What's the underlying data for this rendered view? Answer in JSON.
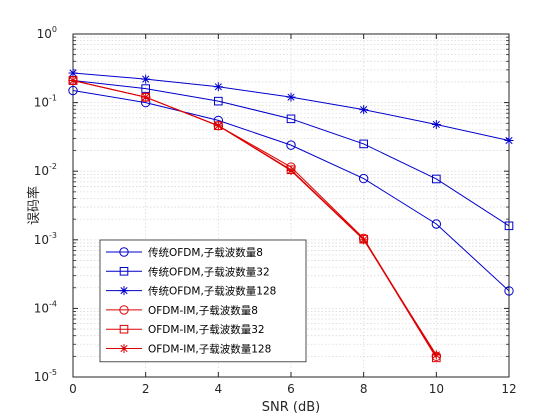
{
  "chart_data": {
    "type": "line",
    "xlabel": "SNR (dB)",
    "ylabel": "误码率",
    "x": [
      0,
      2,
      4,
      6,
      8,
      10,
      12
    ],
    "xlim": [
      0,
      12
    ],
    "ylim": [
      1e-05,
      1
    ],
    "yscale": "log",
    "grid": true,
    "minor_grid": true,
    "legend_position": "bottom-left",
    "xticks": [
      "0",
      "2",
      "4",
      "6",
      "8",
      "10",
      "12"
    ],
    "yticks": [
      {
        "base": "10",
        "exp": "-5"
      },
      {
        "base": "10",
        "exp": "-4"
      },
      {
        "base": "10",
        "exp": "-3"
      },
      {
        "base": "10",
        "exp": "-2"
      },
      {
        "base": "10",
        "exp": "-1"
      },
      {
        "base": "10",
        "exp": "0"
      }
    ],
    "series": [
      {
        "name": "传统OFDM,子载波数量8",
        "color": "#0000cc",
        "marker": "circle",
        "x": [
          0,
          2,
          4,
          6,
          8,
          10,
          12
        ],
        "values": [
          0.15,
          0.1,
          0.055,
          0.024,
          0.0078,
          0.0017,
          0.00018
        ]
      },
      {
        "name": "传统OFDM,子载波数量32",
        "color": "#0000cc",
        "marker": "square",
        "x": [
          0,
          2,
          4,
          6,
          8,
          10,
          12
        ],
        "values": [
          0.21,
          0.16,
          0.105,
          0.058,
          0.025,
          0.0077,
          0.0016
        ]
      },
      {
        "name": "传统OFDM,子载波数量128",
        "color": "#0000cc",
        "marker": "star",
        "x": [
          0,
          2,
          4,
          6,
          8,
          10,
          12
        ],
        "values": [
          0.27,
          0.22,
          0.17,
          0.12,
          0.079,
          0.048,
          0.028
        ]
      },
      {
        "name": "OFDM-IM,子载波数量8",
        "color": "#dd0000",
        "marker": "circle",
        "x": [
          0,
          2,
          4,
          6,
          8,
          10
        ],
        "values": [
          0.21,
          0.12,
          0.046,
          0.0115,
          0.00105,
          2e-05
        ]
      },
      {
        "name": "OFDM-IM,子载波数量32",
        "color": "#dd0000",
        "marker": "square",
        "x": [
          0,
          2,
          4,
          6,
          8,
          10
        ],
        "values": [
          0.21,
          0.12,
          0.046,
          0.0105,
          0.00102,
          1.9e-05
        ]
      },
      {
        "name": "OFDM-IM,子载波数量128",
        "color": "#dd0000",
        "marker": "star",
        "x": [
          0,
          2,
          4,
          6,
          8,
          10
        ],
        "values": [
          0.21,
          0.12,
          0.046,
          0.0102,
          0.001,
          2.1e-05
        ]
      }
    ]
  }
}
